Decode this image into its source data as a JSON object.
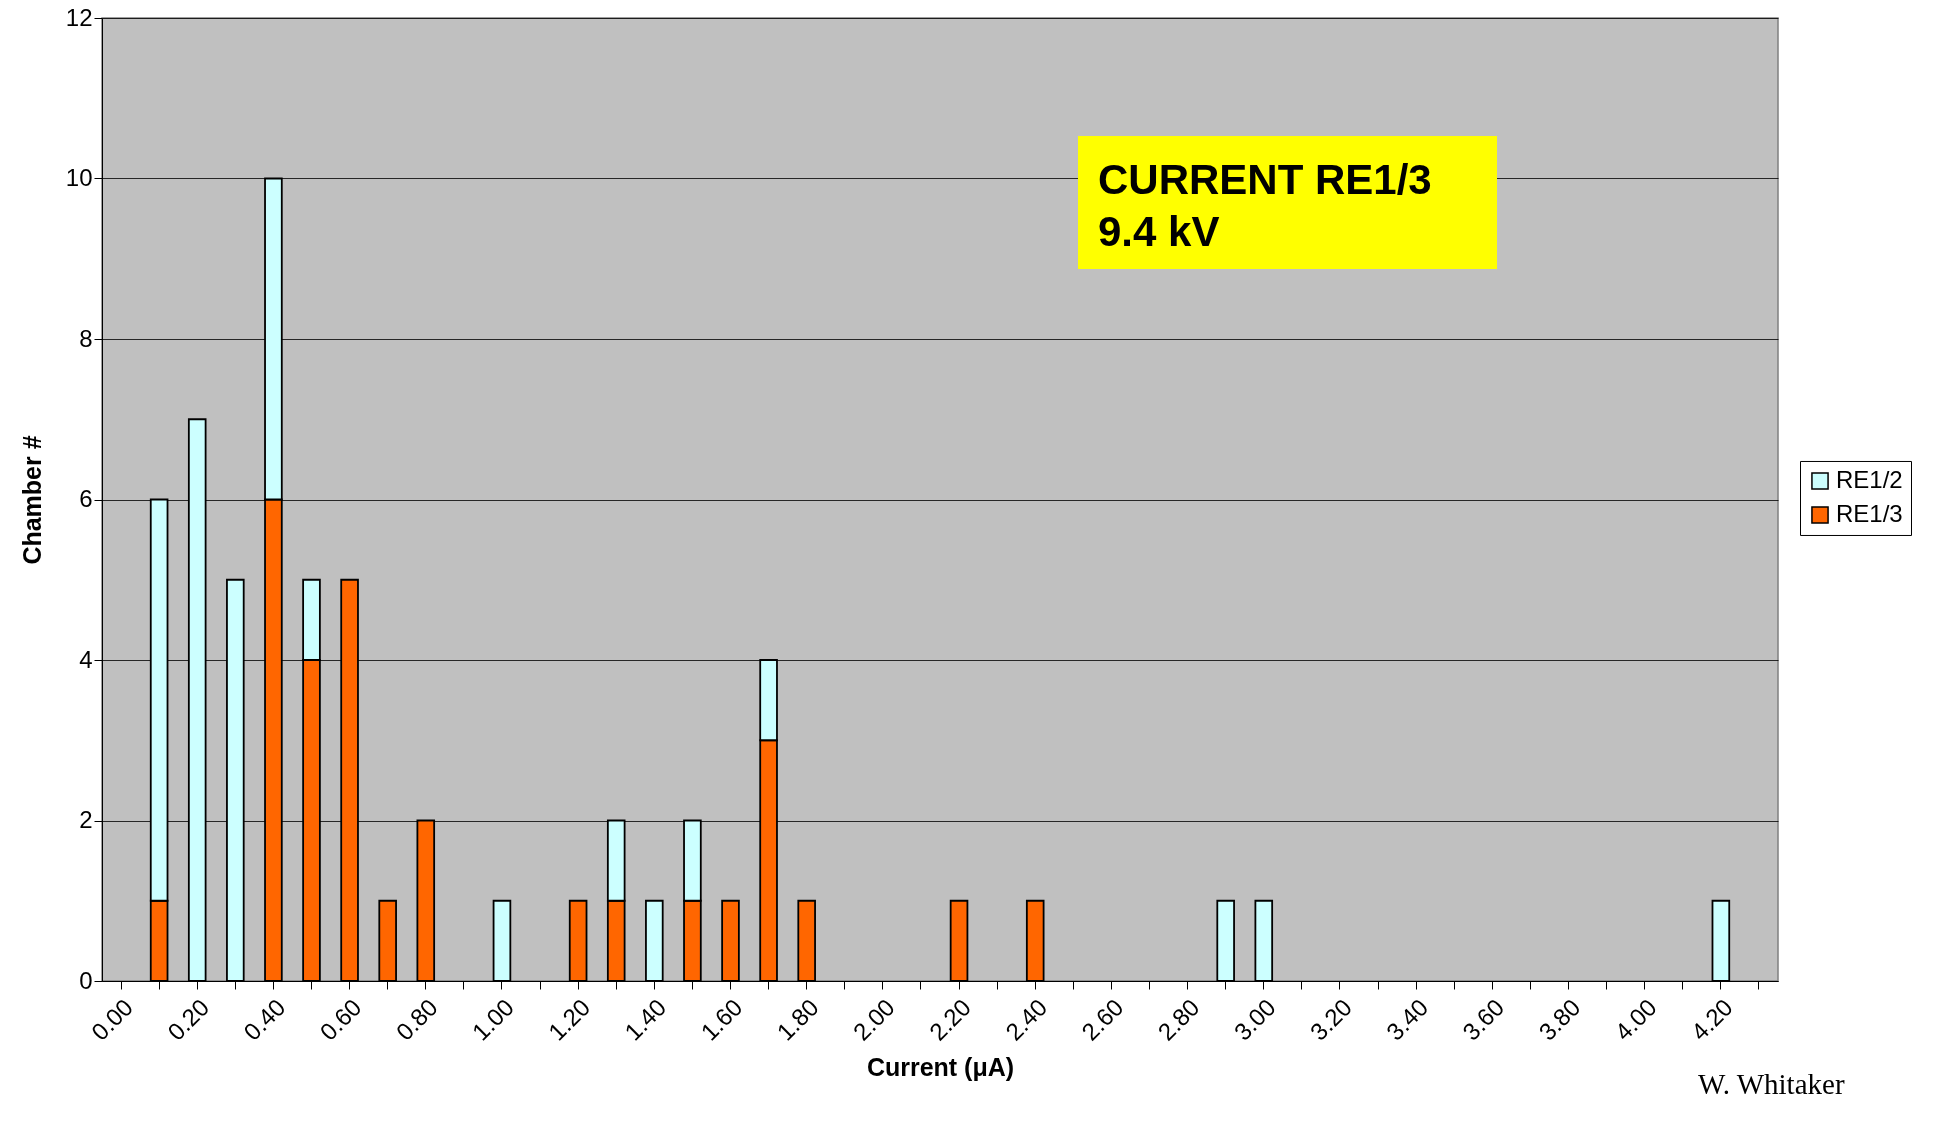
{
  "chart_data": {
    "type": "bar",
    "title": "CURRENT RE1/3",
    "subtitle": "9.4 kV",
    "xlabel": "Current (μA)",
    "ylabel": "Chamber #",
    "categories": [
      "0.00",
      null,
      "0.20",
      null,
      "0.40",
      null,
      "0.60",
      null,
      "0.80",
      null,
      "1.00",
      null,
      "1.20",
      null,
      "1.40",
      null,
      "1.60",
      null,
      "1.80",
      null,
      "2.00",
      null,
      "2.20",
      null,
      "2.40",
      null,
      "2.60",
      null,
      "2.80",
      null,
      "3.00",
      null,
      "3.20",
      null,
      "3.40",
      null,
      "3.60",
      null,
      "3.80",
      null,
      "4.00",
      null,
      "4.20",
      null
    ],
    "stacked": true,
    "series": [
      {
        "name": "RE1/3",
        "color": "#ff6600",
        "values": [
          null,
          1,
          null,
          null,
          6,
          4,
          5,
          1,
          2,
          null,
          null,
          null,
          1,
          1,
          null,
          1,
          1,
          3,
          1,
          null,
          null,
          null,
          1,
          null,
          1,
          null,
          null,
          null,
          null,
          null,
          null,
          null,
          null,
          null,
          null,
          null,
          null,
          null,
          null,
          null,
          null,
          null,
          null,
          null
        ]
      },
      {
        "name": "RE1/2",
        "color": "#ccffff",
        "values": [
          null,
          5,
          7,
          5,
          4,
          1,
          null,
          null,
          null,
          null,
          1,
          null,
          null,
          1,
          1,
          1,
          null,
          1,
          null,
          null,
          null,
          null,
          null,
          null,
          null,
          null,
          null,
          null,
          null,
          1,
          1,
          null,
          null,
          null,
          null,
          null,
          null,
          null,
          null,
          null,
          null,
          null,
          1,
          null
        ]
      }
    ],
    "ylim": [
      0,
      12
    ],
    "yticks": [
      0,
      2,
      4,
      6,
      8,
      10,
      12
    ],
    "grid": "y",
    "legend": "right",
    "annotations": [
      "W. Whitaker"
    ]
  }
}
